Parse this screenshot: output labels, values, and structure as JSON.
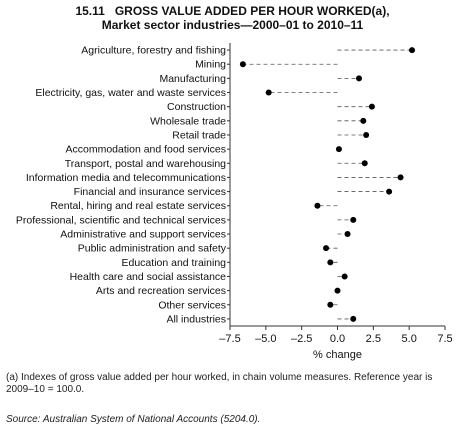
{
  "title": {
    "number": "15.11",
    "line1": "GROSS VALUE ADDED PER HOUR WORKED(a),",
    "line2": "Market sector industries—2000–01 to 2010–11"
  },
  "footnote": "(a) Indexes of gross value added per hour worked, in chain volume measures. Reference year is 2009–10 = 100.0.",
  "source": "Source: Australian System of National Accounts (5204.0).",
  "chart_data": {
    "type": "dot",
    "xlabel": "% change",
    "ylabel": "",
    "xlim": [
      -7.5,
      7.5
    ],
    "xticks": [
      -7.5,
      -5.0,
      -2.5,
      0,
      2.5,
      5.0,
      7.5
    ],
    "xtick_labels": [
      "–7.5",
      "–5.0",
      "–2.5",
      "0.0",
      "2.5",
      "5.0",
      "7.5"
    ],
    "grid": false,
    "leader_lines": "dashed",
    "categories": [
      "Agriculture, forestry and fishing",
      "Mining",
      "Manufacturing",
      "Electricity, gas, water and waste services",
      "Construction",
      "Wholesale trade",
      "Retail trade",
      "Accommodation and food services",
      "Transport, postal and warehousing",
      "Information media and telecommunications",
      "Financial and insurance services",
      "Rental, hiring and real estate services",
      "Professional, scientific and technical services",
      "Administrative and support services",
      "Public administration and safety",
      "Education and training",
      "Health care and social assistance",
      "Arts and recreation services",
      "Other services",
      "All industries"
    ],
    "values": [
      5.2,
      -6.6,
      1.5,
      -4.8,
      2.4,
      1.8,
      2.0,
      0.1,
      1.9,
      4.4,
      3.6,
      -1.4,
      1.1,
      0.7,
      -0.8,
      -0.5,
      0.5,
      0.0,
      -0.5,
      1.1
    ]
  }
}
